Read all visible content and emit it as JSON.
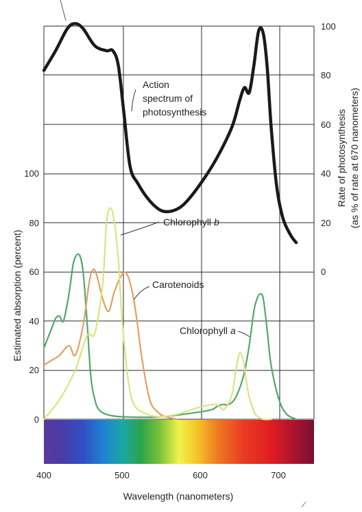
{
  "chart_data": {
    "type": "line",
    "xlabel": "Wavelength (nanometers)",
    "ylabel_left": "Estimated absorption (percent)",
    "ylabel_right": [
      "Rate of photosynthesis",
      "(as % of rate at 670 nanometers)"
    ],
    "xlim": [
      400,
      750
    ],
    "ylim_left": [
      0,
      100
    ],
    "ylim_right": [
      0,
      100
    ],
    "x_ticks": [
      "400",
      "500",
      "600",
      "700"
    ],
    "y_ticks_left": [
      "0",
      "20",
      "40",
      "60",
      "80",
      "100"
    ],
    "y_ticks_right": [
      "0",
      "20",
      "40",
      "60",
      "80",
      "100"
    ],
    "grid": true,
    "spectrum_bar": true,
    "annotations": {
      "action": [
        "Action",
        "spectrum of",
        "photosynthesis"
      ],
      "chl_b_prefix": "Chlorophyll ",
      "chl_b_italic": "b",
      "carotenoids": "Carotenoids",
      "chl_a_prefix": "Chlorophyll ",
      "chl_a_italic": "a"
    },
    "series": [
      {
        "axis": "right",
        "color": "#1a1a1a",
        "x": [
          400,
          415,
          430,
          440,
          450,
          465,
          480,
          488,
          495,
          502,
          510,
          520,
          535,
          550,
          565,
          580,
          600,
          620,
          640,
          650,
          656,
          662,
          668,
          674,
          680,
          685,
          690,
          697,
          705,
          715,
          722
        ],
        "y": [
          82,
          90,
          99,
          101,
          99,
          92,
          90,
          90,
          84,
          65,
          43,
          36,
          29,
          25,
          25,
          28,
          36,
          46,
          59,
          70,
          75,
          73,
          84,
          98,
          97,
          83,
          59,
          35,
          22,
          15,
          12
        ]
      },
      {
        "axis": "left",
        "color": "#4fa86a",
        "x": [
          400,
          410,
          415,
          420,
          425,
          432,
          438,
          445,
          450,
          455,
          460,
          465,
          470,
          480,
          500,
          550,
          600,
          615,
          620,
          628,
          636,
          645,
          655,
          662,
          668,
          672,
          676,
          680,
          685,
          690,
          700,
          710,
          722
        ],
        "y": [
          29,
          37,
          41,
          42,
          40,
          51,
          64,
          67,
          60,
          40,
          17,
          8,
          4,
          2,
          1,
          1,
          3,
          4,
          5,
          6,
          6,
          9,
          18,
          30,
          44,
          49,
          51,
          49,
          36,
          22,
          8,
          2,
          0
        ]
      },
      {
        "axis": "left",
        "color": "#e3a060",
        "x": [
          400,
          410,
          420,
          432,
          440,
          450,
          458,
          463,
          468,
          476,
          483,
          490,
          500,
          506,
          512,
          518,
          525,
          535,
          545,
          555,
          570
        ],
        "y": [
          22,
          24,
          26,
          30,
          26,
          38,
          56,
          61,
          58,
          48,
          44,
          52,
          59,
          59,
          53,
          42,
          25,
          8,
          3,
          1,
          0
        ]
      },
      {
        "axis": "left",
        "color": "#dde37a",
        "x": [
          400,
          420,
          440,
          455,
          465,
          475,
          480,
          485,
          490,
          495,
          500,
          508,
          515,
          525,
          545,
          570,
          600,
          620,
          630,
          640,
          645,
          650,
          655,
          660,
          665,
          670,
          680,
          690
        ],
        "y": [
          0,
          8,
          20,
          34,
          35,
          55,
          80,
          86,
          80,
          65,
          40,
          15,
          6,
          3,
          1,
          2,
          5,
          6,
          4,
          10,
          20,
          27,
          23,
          12,
          6,
          2,
          0,
          0
        ]
      }
    ]
  }
}
